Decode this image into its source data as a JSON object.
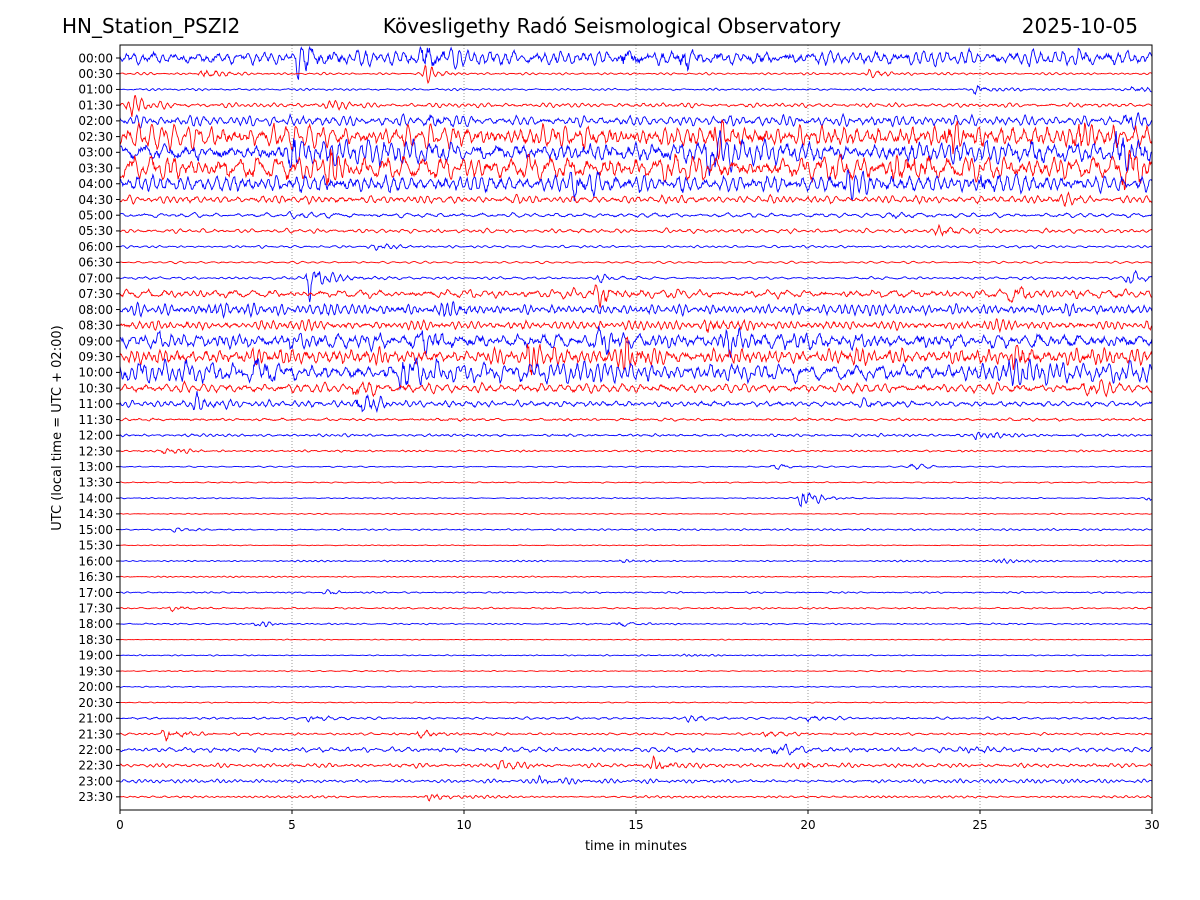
{
  "header": {
    "station": "HN_Station_PSZI2",
    "title": "Kövesligethy Radó Seismological Observatory",
    "date": "2025-10-05"
  },
  "chart_data": {
    "type": "line",
    "title": "Kövesligethy Radó Seismological Observatory",
    "xlabel": "time in minutes",
    "ylabel": "UTC (local time = UTC + 02:00)",
    "xlim": [
      0,
      30
    ],
    "x_ticks": [
      0,
      5,
      10,
      15,
      20,
      25,
      30
    ],
    "grid": "vertical dotted lines at 5-minute ticks",
    "colors": [
      "#0000ff",
      "#ff0000"
    ],
    "traces": [
      {
        "label": "00:00",
        "amplitude": 0.75,
        "events": [
          {
            "t": 5.2,
            "amp": 1.9
          },
          {
            "t": 8.8,
            "amp": 1.6
          },
          {
            "t": 14.6,
            "amp": 1.2
          },
          {
            "t": 16.3,
            "amp": 1.1
          },
          {
            "t": 27.8,
            "amp": 1.0
          }
        ]
      },
      {
        "label": "00:30",
        "amplitude": 0.1,
        "events": [
          {
            "t": 2.4,
            "amp": 0.6
          },
          {
            "t": 8.9,
            "amp": 0.7
          },
          {
            "t": 21.8,
            "amp": 0.5
          }
        ]
      },
      {
        "label": "01:00",
        "amplitude": 0.1,
        "events": [
          {
            "t": 24.9,
            "amp": 0.5
          },
          {
            "t": 29.5,
            "amp": 0.5
          }
        ]
      },
      {
        "label": "01:30",
        "amplitude": 0.2,
        "events": [
          {
            "t": 0.3,
            "amp": 1.0
          },
          {
            "t": 6.0,
            "amp": 0.4
          }
        ]
      },
      {
        "label": "02:00",
        "amplitude": 0.45,
        "events": [
          {
            "t": 8.9,
            "amp": 0.8
          },
          {
            "t": 29.2,
            "amp": 0.7
          }
        ]
      },
      {
        "label": "02:30",
        "amplitude": 1.0,
        "events": [
          {
            "t": 17.3,
            "amp": 1.6
          },
          {
            "t": 24.0,
            "amp": 1.5
          },
          {
            "t": 27.8,
            "amp": 1.6
          }
        ]
      },
      {
        "label": "03:00",
        "amplitude": 1.1,
        "events": [
          {
            "t": 5.0,
            "amp": 1.6
          },
          {
            "t": 17.1,
            "amp": 1.7
          },
          {
            "t": 29.0,
            "amp": 1.7
          }
        ]
      },
      {
        "label": "03:30",
        "amplitude": 1.15,
        "events": [
          {
            "t": 6.0,
            "amp": 1.8
          },
          {
            "t": 22.5,
            "amp": 1.8
          },
          {
            "t": 29.2,
            "amp": 1.6
          }
        ]
      },
      {
        "label": "04:00",
        "amplitude": 0.9,
        "events": [
          {
            "t": 13.2,
            "amp": 1.5
          },
          {
            "t": 21.2,
            "amp": 1.4
          },
          {
            "t": 25.0,
            "amp": 1.3
          }
        ]
      },
      {
        "label": "04:30",
        "amplitude": 0.35,
        "events": [
          {
            "t": 27.2,
            "amp": 0.6
          }
        ]
      },
      {
        "label": "05:00",
        "amplitude": 0.22,
        "events": [
          {
            "t": 5.0,
            "amp": 0.4
          },
          {
            "t": 22.5,
            "amp": 0.4
          }
        ]
      },
      {
        "label": "05:30",
        "amplitude": 0.18,
        "events": [
          {
            "t": 23.8,
            "amp": 0.6
          }
        ]
      },
      {
        "label": "06:00",
        "amplitude": 0.1,
        "events": [
          {
            "t": 7.5,
            "amp": 0.5
          }
        ]
      },
      {
        "label": "06:30",
        "amplitude": 0.08,
        "events": []
      },
      {
        "label": "07:00",
        "amplitude": 0.12,
        "events": [
          {
            "t": 5.5,
            "amp": 2.1
          },
          {
            "t": 13.9,
            "amp": 0.5
          },
          {
            "t": 29.3,
            "amp": 0.6
          }
        ]
      },
      {
        "label": "07:30",
        "amplitude": 0.4,
        "events": [
          {
            "t": 13.9,
            "amp": 1.2
          },
          {
            "t": 25.9,
            "amp": 0.8
          }
        ]
      },
      {
        "label": "08:00",
        "amplitude": 0.5,
        "events": [
          {
            "t": 2.5,
            "amp": 0.7
          },
          {
            "t": 9.4,
            "amp": 0.8
          }
        ]
      },
      {
        "label": "08:30",
        "amplitude": 0.45,
        "events": [
          {
            "t": 17.0,
            "amp": 0.8
          }
        ]
      },
      {
        "label": "09:00",
        "amplitude": 0.85,
        "events": [
          {
            "t": 8.8,
            "amp": 1.3
          },
          {
            "t": 14.0,
            "amp": 1.4
          },
          {
            "t": 17.5,
            "amp": 1.2
          }
        ]
      },
      {
        "label": "09:30",
        "amplitude": 0.8,
        "events": [
          {
            "t": 11.9,
            "amp": 1.4
          },
          {
            "t": 14.7,
            "amp": 1.5
          },
          {
            "t": 26.0,
            "amp": 1.5
          }
        ]
      },
      {
        "label": "10:00",
        "amplitude": 0.9,
        "events": [
          {
            "t": 3.9,
            "amp": 1.8
          },
          {
            "t": 8.2,
            "amp": 1.8
          },
          {
            "t": 25.9,
            "amp": 0.9
          }
        ]
      },
      {
        "label": "10:30",
        "amplitude": 0.45,
        "events": [
          {
            "t": 6.8,
            "amp": 0.9
          },
          {
            "t": 28.1,
            "amp": 0.8
          }
        ]
      },
      {
        "label": "11:00",
        "amplitude": 0.32,
        "events": [
          {
            "t": 2.2,
            "amp": 0.8
          },
          {
            "t": 6.9,
            "amp": 1.3
          },
          {
            "t": 21.5,
            "amp": 0.5
          }
        ]
      },
      {
        "label": "11:30",
        "amplitude": 0.18,
        "events": []
      },
      {
        "label": "12:00",
        "amplitude": 0.15,
        "events": [
          {
            "t": 24.9,
            "amp": 0.6
          }
        ]
      },
      {
        "label": "12:30",
        "amplitude": 0.1,
        "events": [
          {
            "t": 1.3,
            "amp": 0.4
          }
        ]
      },
      {
        "label": "13:00",
        "amplitude": 0.06,
        "events": [
          {
            "t": 19.0,
            "amp": 0.4
          },
          {
            "t": 23.0,
            "amp": 0.3
          }
        ]
      },
      {
        "label": "13:30",
        "amplitude": 0.06,
        "events": []
      },
      {
        "label": "14:00",
        "amplitude": 0.05,
        "events": [
          {
            "t": 19.8,
            "amp": 1.1
          },
          {
            "t": 29.9,
            "amp": 0.3
          }
        ]
      },
      {
        "label": "14:30",
        "amplitude": 0.05,
        "events": []
      },
      {
        "label": "15:00",
        "amplitude": 0.08,
        "events": [
          {
            "t": 1.6,
            "amp": 0.3
          }
        ]
      },
      {
        "label": "15:30",
        "amplitude": 0.05,
        "events": []
      },
      {
        "label": "16:00",
        "amplitude": 0.08,
        "events": [
          {
            "t": 14.6,
            "amp": 0.3
          },
          {
            "t": 25.5,
            "amp": 0.3
          }
        ]
      },
      {
        "label": "16:30",
        "amplitude": 0.06,
        "events": []
      },
      {
        "label": "17:00",
        "amplitude": 0.08,
        "events": [
          {
            "t": 6.0,
            "amp": 0.3
          }
        ]
      },
      {
        "label": "17:30",
        "amplitude": 0.08,
        "events": [
          {
            "t": 1.5,
            "amp": 0.3
          }
        ]
      },
      {
        "label": "18:00",
        "amplitude": 0.06,
        "events": [
          {
            "t": 4.0,
            "amp": 0.4
          },
          {
            "t": 14.5,
            "amp": 0.3
          }
        ]
      },
      {
        "label": "18:30",
        "amplitude": 0.04,
        "events": []
      },
      {
        "label": "19:00",
        "amplitude": 0.05,
        "events": [
          {
            "t": 16.5,
            "amp": 0.2
          }
        ]
      },
      {
        "label": "19:30",
        "amplitude": 0.05,
        "events": []
      },
      {
        "label": "20:00",
        "amplitude": 0.05,
        "events": []
      },
      {
        "label": "20:30",
        "amplitude": 0.05,
        "events": []
      },
      {
        "label": "21:00",
        "amplitude": 0.12,
        "events": [
          {
            "t": 5.5,
            "amp": 0.4
          },
          {
            "t": 16.5,
            "amp": 0.4
          },
          {
            "t": 20.0,
            "amp": 0.4
          }
        ]
      },
      {
        "label": "21:30",
        "amplitude": 0.12,
        "events": [
          {
            "t": 1.3,
            "amp": 0.8
          },
          {
            "t": 8.7,
            "amp": 0.5
          },
          {
            "t": 18.8,
            "amp": 0.4
          }
        ]
      },
      {
        "label": "22:00",
        "amplitude": 0.2,
        "events": [
          {
            "t": 19.0,
            "amp": 0.6
          },
          {
            "t": 24.5,
            "amp": 0.4
          }
        ]
      },
      {
        "label": "22:30",
        "amplitude": 0.18,
        "events": [
          {
            "t": 11.0,
            "amp": 0.5
          },
          {
            "t": 15.5,
            "amp": 0.7
          },
          {
            "t": 19.8,
            "amp": 0.4
          }
        ]
      },
      {
        "label": "23:00",
        "amplitude": 0.15,
        "events": [
          {
            "t": 12.2,
            "amp": 0.4
          }
        ]
      },
      {
        "label": "23:30",
        "amplitude": 0.1,
        "events": [
          {
            "t": 9.0,
            "amp": 0.4
          }
        ]
      }
    ]
  }
}
